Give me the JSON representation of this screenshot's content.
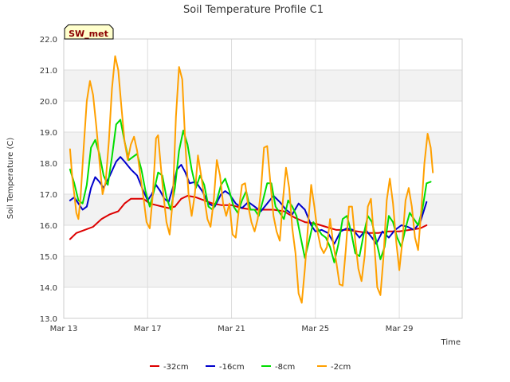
{
  "chart_data": {
    "type": "line",
    "title": "Soil Temperature Profile C1",
    "xlabel": "Time",
    "ylabel": "Soil Temperature (C)",
    "badge": "SW_met",
    "ylim": [
      13.0,
      22.0
    ],
    "yticks": [
      "13.0",
      "14.0",
      "15.0",
      "16.0",
      "17.0",
      "18.0",
      "19.0",
      "20.0",
      "21.0",
      "22.0"
    ],
    "xlim": [
      0,
      19
    ],
    "xticks": [
      {
        "day": 0,
        "label": "Mar 13"
      },
      {
        "day": 4,
        "label": "Mar 17"
      },
      {
        "day": 8,
        "label": "Mar 21"
      },
      {
        "day": 12,
        "label": "Mar 25"
      },
      {
        "day": 16,
        "label": "Mar 29"
      }
    ],
    "grid": true,
    "legend_position": "bottom",
    "series": [
      {
        "name": "-32cm",
        "color": "#dd0000",
        "points": [
          [
            0.3,
            15.55
          ],
          [
            0.6,
            15.75
          ],
          [
            1.0,
            15.85
          ],
          [
            1.4,
            15.95
          ],
          [
            1.8,
            16.2
          ],
          [
            2.2,
            16.35
          ],
          [
            2.6,
            16.45
          ],
          [
            2.9,
            16.7
          ],
          [
            3.2,
            16.85
          ],
          [
            3.5,
            16.85
          ],
          [
            3.8,
            16.85
          ],
          [
            4.1,
            16.7
          ],
          [
            4.4,
            16.65
          ],
          [
            4.7,
            16.6
          ],
          [
            5.0,
            16.55
          ],
          [
            5.3,
            16.6
          ],
          [
            5.6,
            16.85
          ],
          [
            5.9,
            16.95
          ],
          [
            6.3,
            16.9
          ],
          [
            6.7,
            16.8
          ],
          [
            7.1,
            16.7
          ],
          [
            7.5,
            16.65
          ],
          [
            8.0,
            16.65
          ],
          [
            8.5,
            16.55
          ],
          [
            9.0,
            16.5
          ],
          [
            9.5,
            16.5
          ],
          [
            10.0,
            16.5
          ],
          [
            10.5,
            16.45
          ],
          [
            11.0,
            16.25
          ],
          [
            11.5,
            16.1
          ],
          [
            12.0,
            16.05
          ],
          [
            12.5,
            15.95
          ],
          [
            13.0,
            15.85
          ],
          [
            13.5,
            15.85
          ],
          [
            14.0,
            15.8
          ],
          [
            14.5,
            15.75
          ],
          [
            15.0,
            15.75
          ],
          [
            15.5,
            15.8
          ],
          [
            16.0,
            15.8
          ],
          [
            16.5,
            15.85
          ],
          [
            17.0,
            15.9
          ],
          [
            17.3,
            16.0
          ]
        ]
      },
      {
        "name": "-16cm",
        "color": "#0000cc",
        "points": [
          [
            0.3,
            16.8
          ],
          [
            0.5,
            16.9
          ],
          [
            0.7,
            16.7
          ],
          [
            0.9,
            16.5
          ],
          [
            1.1,
            16.6
          ],
          [
            1.3,
            17.2
          ],
          [
            1.5,
            17.55
          ],
          [
            1.7,
            17.4
          ],
          [
            1.9,
            17.2
          ],
          [
            2.2,
            17.6
          ],
          [
            2.5,
            18.05
          ],
          [
            2.7,
            18.2
          ],
          [
            2.9,
            18.05
          ],
          [
            3.2,
            17.8
          ],
          [
            3.5,
            17.6
          ],
          [
            3.8,
            17.1
          ],
          [
            4.0,
            16.8
          ],
          [
            4.2,
            17.0
          ],
          [
            4.4,
            17.3
          ],
          [
            4.6,
            17.1
          ],
          [
            4.8,
            16.85
          ],
          [
            5.0,
            16.75
          ],
          [
            5.2,
            17.2
          ],
          [
            5.4,
            17.8
          ],
          [
            5.6,
            17.95
          ],
          [
            5.8,
            17.7
          ],
          [
            6.0,
            17.35
          ],
          [
            6.3,
            17.4
          ],
          [
            6.6,
            17.1
          ],
          [
            6.9,
            16.7
          ],
          [
            7.2,
            16.6
          ],
          [
            7.5,
            17.0
          ],
          [
            7.7,
            17.1
          ],
          [
            7.9,
            17.0
          ],
          [
            8.2,
            16.7
          ],
          [
            8.5,
            16.55
          ],
          [
            8.8,
            16.75
          ],
          [
            9.1,
            16.6
          ],
          [
            9.4,
            16.45
          ],
          [
            9.7,
            16.7
          ],
          [
            10.0,
            16.95
          ],
          [
            10.3,
            16.75
          ],
          [
            10.6,
            16.5
          ],
          [
            10.9,
            16.35
          ],
          [
            11.2,
            16.7
          ],
          [
            11.5,
            16.5
          ],
          [
            11.8,
            16.0
          ],
          [
            12.0,
            15.8
          ],
          [
            12.3,
            15.85
          ],
          [
            12.6,
            15.75
          ],
          [
            12.9,
            15.4
          ],
          [
            13.2,
            15.8
          ],
          [
            13.5,
            15.9
          ],
          [
            13.8,
            15.85
          ],
          [
            14.1,
            15.6
          ],
          [
            14.4,
            15.85
          ],
          [
            14.7,
            15.6
          ],
          [
            14.9,
            15.4
          ],
          [
            15.2,
            15.8
          ],
          [
            15.5,
            15.6
          ],
          [
            15.8,
            15.85
          ],
          [
            16.1,
            16.0
          ],
          [
            16.4,
            15.95
          ],
          [
            16.7,
            15.85
          ],
          [
            17.0,
            16.1
          ],
          [
            17.3,
            16.75
          ]
        ]
      },
      {
        "name": "-8cm",
        "color": "#00dd00",
        "points": [
          [
            0.3,
            17.8
          ],
          [
            0.5,
            17.35
          ],
          [
            0.7,
            16.8
          ],
          [
            0.9,
            16.7
          ],
          [
            1.1,
            17.3
          ],
          [
            1.3,
            18.5
          ],
          [
            1.5,
            18.75
          ],
          [
            1.7,
            18.3
          ],
          [
            1.9,
            17.6
          ],
          [
            2.1,
            17.3
          ],
          [
            2.3,
            18.2
          ],
          [
            2.5,
            19.25
          ],
          [
            2.7,
            19.4
          ],
          [
            2.9,
            18.7
          ],
          [
            3.1,
            18.1
          ],
          [
            3.3,
            18.2
          ],
          [
            3.5,
            18.3
          ],
          [
            3.7,
            17.8
          ],
          [
            3.9,
            17.1
          ],
          [
            4.1,
            16.6
          ],
          [
            4.3,
            17.1
          ],
          [
            4.5,
            17.7
          ],
          [
            4.7,
            17.6
          ],
          [
            4.9,
            16.9
          ],
          [
            5.1,
            16.5
          ],
          [
            5.3,
            17.2
          ],
          [
            5.5,
            18.4
          ],
          [
            5.7,
            19.05
          ],
          [
            5.9,
            18.6
          ],
          [
            6.1,
            17.8
          ],
          [
            6.3,
            17.2
          ],
          [
            6.5,
            17.6
          ],
          [
            6.7,
            17.3
          ],
          [
            6.9,
            16.6
          ],
          [
            7.1,
            16.5
          ],
          [
            7.3,
            16.8
          ],
          [
            7.5,
            17.3
          ],
          [
            7.7,
            17.5
          ],
          [
            7.9,
            17.1
          ],
          [
            8.1,
            16.6
          ],
          [
            8.3,
            16.4
          ],
          [
            8.5,
            16.8
          ],
          [
            8.7,
            17.1
          ],
          [
            8.9,
            16.5
          ],
          [
            9.1,
            16.5
          ],
          [
            9.3,
            16.3
          ],
          [
            9.5,
            16.8
          ],
          [
            9.7,
            17.35
          ],
          [
            9.9,
            17.35
          ],
          [
            10.1,
            16.6
          ],
          [
            10.3,
            16.4
          ],
          [
            10.5,
            16.2
          ],
          [
            10.7,
            16.8
          ],
          [
            10.9,
            16.6
          ],
          [
            11.1,
            16.3
          ],
          [
            11.3,
            15.6
          ],
          [
            11.5,
            14.95
          ],
          [
            11.7,
            15.5
          ],
          [
            11.9,
            16.1
          ],
          [
            12.1,
            15.9
          ],
          [
            12.3,
            15.7
          ],
          [
            12.5,
            15.6
          ],
          [
            12.7,
            15.3
          ],
          [
            12.9,
            14.8
          ],
          [
            13.1,
            15.4
          ],
          [
            13.3,
            16.2
          ],
          [
            13.5,
            16.3
          ],
          [
            13.7,
            15.8
          ],
          [
            13.9,
            15.1
          ],
          [
            14.1,
            15.0
          ],
          [
            14.3,
            15.7
          ],
          [
            14.5,
            16.3
          ],
          [
            14.7,
            16.1
          ],
          [
            14.9,
            15.5
          ],
          [
            15.1,
            14.9
          ],
          [
            15.3,
            15.3
          ],
          [
            15.5,
            16.3
          ],
          [
            15.7,
            16.1
          ],
          [
            15.9,
            15.6
          ],
          [
            16.1,
            15.3
          ],
          [
            16.3,
            15.9
          ],
          [
            16.5,
            16.4
          ],
          [
            16.7,
            16.2
          ],
          [
            16.9,
            16.0
          ],
          [
            17.1,
            16.5
          ],
          [
            17.3,
            17.35
          ],
          [
            17.5,
            17.4
          ]
        ]
      },
      {
        "name": "-2cm",
        "color": "#ffa000",
        "points": [
          [
            0.3,
            18.45
          ],
          [
            0.4,
            17.6
          ],
          [
            0.5,
            17.0
          ],
          [
            0.6,
            16.4
          ],
          [
            0.7,
            16.2
          ],
          [
            0.8,
            16.9
          ],
          [
            0.95,
            18.5
          ],
          [
            1.1,
            20.0
          ],
          [
            1.25,
            20.65
          ],
          [
            1.4,
            20.2
          ],
          [
            1.55,
            19.2
          ],
          [
            1.7,
            18.1
          ],
          [
            1.85,
            17.0
          ],
          [
            2.0,
            17.4
          ],
          [
            2.15,
            18.7
          ],
          [
            2.3,
            20.4
          ],
          [
            2.45,
            21.45
          ],
          [
            2.6,
            21.0
          ],
          [
            2.75,
            19.8
          ],
          [
            2.9,
            18.7
          ],
          [
            3.05,
            18.1
          ],
          [
            3.2,
            18.6
          ],
          [
            3.35,
            18.85
          ],
          [
            3.5,
            18.4
          ],
          [
            3.65,
            17.6
          ],
          [
            3.8,
            16.9
          ],
          [
            3.95,
            16.1
          ],
          [
            4.1,
            15.9
          ],
          [
            4.25,
            17.0
          ],
          [
            4.4,
            18.8
          ],
          [
            4.5,
            18.9
          ],
          [
            4.6,
            18.1
          ],
          [
            4.75,
            17.0
          ],
          [
            4.9,
            16.1
          ],
          [
            5.05,
            15.7
          ],
          [
            5.2,
            16.8
          ],
          [
            5.35,
            19.5
          ],
          [
            5.5,
            21.1
          ],
          [
            5.65,
            20.7
          ],
          [
            5.8,
            18.6
          ],
          [
            5.95,
            17.0
          ],
          [
            6.1,
            16.3
          ],
          [
            6.25,
            17.0
          ],
          [
            6.4,
            18.25
          ],
          [
            6.55,
            17.6
          ],
          [
            6.7,
            16.9
          ],
          [
            6.85,
            16.2
          ],
          [
            7.0,
            15.95
          ],
          [
            7.15,
            16.8
          ],
          [
            7.3,
            18.1
          ],
          [
            7.45,
            17.6
          ],
          [
            7.6,
            16.7
          ],
          [
            7.75,
            16.3
          ],
          [
            7.9,
            16.7
          ],
          [
            8.05,
            15.7
          ],
          [
            8.2,
            15.6
          ],
          [
            8.35,
            16.5
          ],
          [
            8.5,
            17.3
          ],
          [
            8.65,
            17.35
          ],
          [
            8.8,
            16.6
          ],
          [
            8.95,
            16.1
          ],
          [
            9.1,
            15.8
          ],
          [
            9.25,
            16.2
          ],
          [
            9.4,
            17.1
          ],
          [
            9.55,
            18.5
          ],
          [
            9.7,
            18.55
          ],
          [
            9.85,
            17.4
          ],
          [
            10.0,
            16.3
          ],
          [
            10.15,
            15.8
          ],
          [
            10.3,
            15.5
          ],
          [
            10.45,
            16.8
          ],
          [
            10.6,
            17.85
          ],
          [
            10.75,
            17.2
          ],
          [
            10.9,
            15.9
          ],
          [
            11.05,
            15.1
          ],
          [
            11.2,
            13.8
          ],
          [
            11.35,
            13.5
          ],
          [
            11.5,
            14.6
          ],
          [
            11.65,
            16.0
          ],
          [
            11.8,
            17.3
          ],
          [
            11.95,
            16.6
          ],
          [
            12.1,
            15.8
          ],
          [
            12.25,
            15.3
          ],
          [
            12.4,
            15.1
          ],
          [
            12.55,
            15.3
          ],
          [
            12.7,
            16.2
          ],
          [
            12.85,
            15.4
          ],
          [
            13.0,
            14.8
          ],
          [
            13.15,
            14.1
          ],
          [
            13.3,
            14.05
          ],
          [
            13.45,
            15.2
          ],
          [
            13.6,
            16.6
          ],
          [
            13.75,
            16.6
          ],
          [
            13.9,
            15.5
          ],
          [
            14.05,
            14.6
          ],
          [
            14.2,
            14.2
          ],
          [
            14.35,
            15.0
          ],
          [
            14.5,
            16.6
          ],
          [
            14.65,
            16.85
          ],
          [
            14.8,
            15.5
          ],
          [
            14.95,
            14.0
          ],
          [
            15.1,
            13.75
          ],
          [
            15.25,
            15.0
          ],
          [
            15.4,
            16.8
          ],
          [
            15.55,
            17.5
          ],
          [
            15.7,
            16.7
          ],
          [
            15.85,
            15.5
          ],
          [
            16.0,
            14.55
          ],
          [
            16.15,
            15.5
          ],
          [
            16.3,
            16.8
          ],
          [
            16.45,
            17.2
          ],
          [
            16.6,
            16.6
          ],
          [
            16.75,
            15.6
          ],
          [
            16.9,
            15.2
          ],
          [
            17.05,
            16.5
          ],
          [
            17.2,
            18.0
          ],
          [
            17.35,
            18.95
          ],
          [
            17.5,
            18.5
          ],
          [
            17.6,
            17.7
          ]
        ]
      }
    ]
  }
}
